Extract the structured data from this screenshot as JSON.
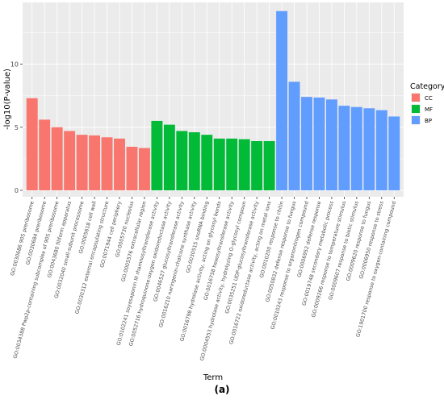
{
  "panel_label": "(a)",
  "colors": {
    "CC": "#F8766D",
    "MF": "#00BA38",
    "BP": "#619CFF",
    "panel_background": "#EBEBEB",
    "grid": "#FFFFFF"
  },
  "chart_data": {
    "type": "bar",
    "title": "",
    "xlabel": "Term",
    "ylabel": "-log10(P-value)",
    "ylim": [
      0,
      14.5
    ],
    "yticks": [
      0,
      5,
      10
    ],
    "grid": true,
    "legend": {
      "title": "Category",
      "placement": "right",
      "entries": [
        "CC",
        "MF",
        "BP"
      ]
    },
    "categories": [
      "GO:0030686 90S preribosome",
      "GO:0030684 preribosome",
      "GO:0034388 Pwp2p-containing subcomplex of 90S preribosome",
      "GO:0043680 filiform apparatus",
      "GO:0032040 small-subunit processome",
      "GO:0005618 cell wall",
      "GO:0030312 external encapsulating structure",
      "GO:0071944 cell periphery",
      "GO:0005730 nucleolus",
      "GO:0005576 extracellular region",
      "GO:0102241 soyasaponin III rhamnosyltransferase activity",
      "GO:0052716 hydroquinone:oxygen oxidoreductase activity",
      "GO:0046527 glucosyltransferase activity",
      "GO:0016210 naringenin-chalcone synthase activity",
      "GO:0030515 snoRNA binding",
      "GO:0016798 hydrolase activity, acting on glycosyl bonds",
      "GO:0016758 hexosyltransferase activity",
      "GO:0004553 hydrolase activity, hydrolyzing O-glycosyl compoun",
      "GO:0035251 UDP-glucosyltransferase activity",
      "GO:0016722 oxidoreductase activity, acting on metal ions",
      "GO:0010200 response to chitin",
      "GO:0050832 defense response to fungus",
      "GO:0010243 response to organonitrogen compound",
      "GO:0006952 defense response",
      "GO:0019748 secondary metabolic process",
      "GO:0009266 response to temperature stimulus",
      "GO:0009607 response to biotic stimulus",
      "GO:0009620 response to fungus",
      "GO:0006950 response to stress",
      "GO:1901700 response to oxygen-containing compound"
    ],
    "category_group": [
      "CC",
      "CC",
      "CC",
      "CC",
      "CC",
      "CC",
      "CC",
      "CC",
      "CC",
      "CC",
      "MF",
      "MF",
      "MF",
      "MF",
      "MF",
      "MF",
      "MF",
      "MF",
      "MF",
      "MF",
      "BP",
      "BP",
      "BP",
      "BP",
      "BP",
      "BP",
      "BP",
      "BP",
      "BP",
      "BP"
    ],
    "values": [
      7.3,
      5.6,
      5.0,
      4.7,
      4.4,
      4.35,
      4.2,
      4.1,
      3.45,
      3.35,
      5.5,
      5.2,
      4.7,
      4.6,
      4.4,
      4.1,
      4.1,
      4.05,
      3.9,
      3.9,
      14.2,
      8.6,
      7.4,
      7.35,
      7.2,
      6.7,
      6.6,
      6.5,
      6.35,
      5.85
    ]
  }
}
